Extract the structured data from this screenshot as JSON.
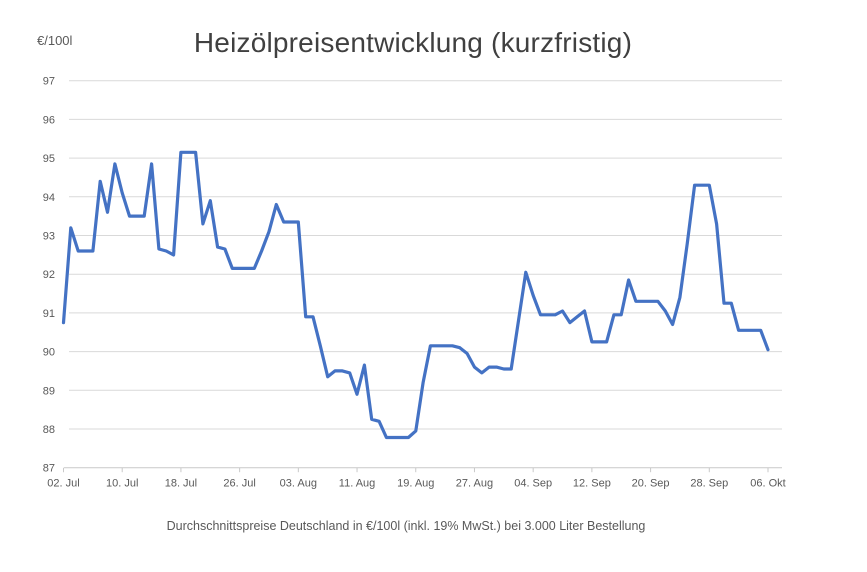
{
  "caption": "Durchschnittspreise Deutschland in €/100l (inkl. 19% MwSt.) bei 3.000 Liter Bestellung",
  "colors": {
    "line": "#4472C4",
    "grid": "#D9D9D9",
    "axis": "#C9C9C9",
    "tick_text": "#595959",
    "title_text": "#404040"
  },
  "chart_data": {
    "type": "line",
    "title": "Heizölpreisentwicklung (kurzfristig)",
    "ylabel": "€/100l",
    "xlabel": "",
    "ylim": [
      87,
      97
    ],
    "y_ticks": [
      87,
      88,
      89,
      90,
      91,
      92,
      93,
      94,
      95,
      96,
      97
    ],
    "x_tick_labels": [
      "02. Jul",
      "10. Jul",
      "18. Jul",
      "26. Jul",
      "03. Aug",
      "11. Aug",
      "19. Aug",
      "27. Aug",
      "04. Sep",
      "12. Sep",
      "20. Sep",
      "28. Sep",
      "06. Okt"
    ],
    "x_tick_days": [
      0,
      8,
      16,
      24,
      32,
      40,
      48,
      56,
      64,
      72,
      80,
      88,
      96
    ],
    "x_range_days": [
      0,
      96
    ],
    "grid": "horizontal",
    "legend": "none",
    "series": [
      {
        "name": "Heizölpreis €/100l",
        "color": "#4472C4",
        "frequency": "daily",
        "values": [
          90.75,
          93.2,
          92.6,
          92.6,
          92.6,
          94.4,
          93.6,
          94.85,
          94.1,
          93.5,
          93.5,
          93.5,
          94.85,
          92.65,
          92.6,
          92.5,
          95.15,
          95.15,
          95.15,
          93.3,
          93.9,
          92.7,
          92.65,
          92.15,
          92.15,
          92.15,
          92.15,
          92.6,
          93.1,
          93.8,
          93.35,
          93.35,
          93.35,
          90.9,
          90.9,
          90.15,
          89.35,
          89.5,
          89.5,
          89.45,
          88.9,
          89.65,
          88.25,
          88.2,
          87.78,
          87.78,
          87.78,
          87.78,
          87.95,
          89.2,
          90.15,
          90.15,
          90.15,
          90.15,
          90.1,
          89.95,
          89.6,
          89.45,
          89.6,
          89.6,
          89.55,
          89.55,
          90.8,
          92.05,
          91.45,
          90.95,
          90.95,
          90.95,
          91.05,
          90.75,
          90.9,
          91.05,
          90.25,
          90.25,
          90.25,
          90.95,
          90.95,
          91.85,
          91.3,
          91.3,
          91.3,
          91.3,
          91.05,
          90.7,
          91.4,
          92.8,
          94.3,
          94.3,
          94.3,
          93.3,
          91.25,
          91.25,
          90.55,
          90.55,
          90.55,
          90.55,
          90.05
        ]
      }
    ]
  }
}
